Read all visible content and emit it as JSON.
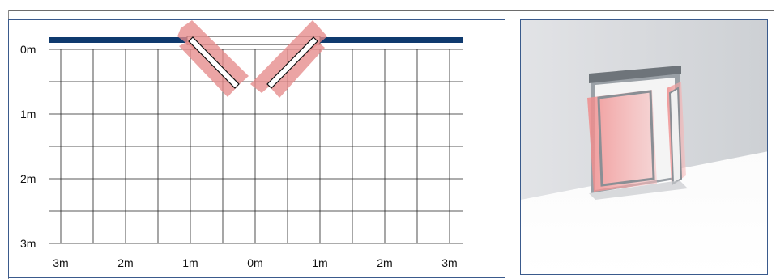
{
  "diagram": {
    "y_axis_labels": [
      "0m",
      "1m",
      "2m",
      "3m"
    ],
    "x_axis_labels": [
      "3m",
      "2m",
      "1m",
      "0m",
      "1m",
      "2m",
      "3m"
    ],
    "colors": {
      "wall": "#0f3a6e",
      "panel_border": "#3a5a8c",
      "grid": "#1a1a1a",
      "sensor_field": "#e58a8a"
    }
  },
  "perspective_view": {
    "icon": "door-3d-render-icon"
  }
}
